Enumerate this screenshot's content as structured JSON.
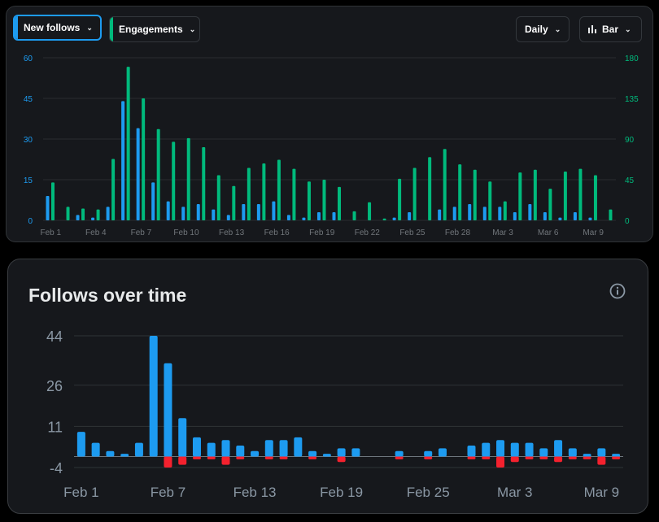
{
  "controls": {
    "new_follows_label": "New follows",
    "engagements_label": "Engagements",
    "interval_label": "Daily",
    "chart_type_label": "Bar",
    "chevron_icon": "chevron-down-icon",
    "bar_chart_icon": "bar-chart-icon"
  },
  "colors": {
    "follows": "#1d9bf0",
    "engagements": "#00ba7c",
    "unfollows": "#f4212e",
    "axis_left": "#1d9bf0",
    "axis_right": "#00ba7c",
    "tick_text": "#71767b"
  },
  "bottom_title": "Follows over time",
  "info_icon": "info-icon",
  "chart_data": [
    {
      "type": "bar",
      "title": "",
      "categories": [
        "Feb 1",
        "Feb 2",
        "Feb 3",
        "Feb 4",
        "Feb 5",
        "Feb 6",
        "Feb 7",
        "Feb 8",
        "Feb 9",
        "Feb 10",
        "Feb 11",
        "Feb 12",
        "Feb 13",
        "Feb 14",
        "Feb 15",
        "Feb 16",
        "Feb 17",
        "Feb 18",
        "Feb 19",
        "Feb 20",
        "Feb 21",
        "Feb 22",
        "Feb 23",
        "Feb 24",
        "Feb 25",
        "Feb 26",
        "Feb 27",
        "Feb 28",
        "Mar 1",
        "Mar 2",
        "Mar 3",
        "Mar 4",
        "Mar 5",
        "Mar 6",
        "Mar 7",
        "Mar 8",
        "Mar 9",
        "Mar 10"
      ],
      "x_tick_labels": [
        "Feb 1",
        "Feb 4",
        "Feb 7",
        "Feb 10",
        "Feb 13",
        "Feb 16",
        "Feb 19",
        "Feb 22",
        "Feb 25",
        "Feb 28",
        "Mar 3",
        "Mar 6",
        "Mar 9"
      ],
      "series": [
        {
          "name": "New follows",
          "axis": "left",
          "values": [
            9,
            0,
            2,
            1,
            5,
            44,
            34,
            14,
            7,
            5,
            6,
            4,
            2,
            6,
            6,
            7,
            2,
            1,
            3,
            3,
            0,
            0,
            0,
            1,
            3,
            0,
            4,
            5,
            6,
            5,
            5,
            3,
            6,
            3,
            1,
            3,
            1,
            0
          ]
        },
        {
          "name": "Engagements",
          "axis": "right",
          "values": [
            42,
            15,
            13,
            12,
            68,
            170,
            135,
            101,
            87,
            91,
            81,
            50,
            38,
            58,
            63,
            67,
            57,
            43,
            45,
            37,
            10,
            20,
            2,
            46,
            58,
            70,
            79,
            62,
            56,
            43,
            21,
            53,
            56,
            35,
            54,
            57,
            50,
            12
          ]
        }
      ],
      "y_left": {
        "ticks": [
          0,
          15,
          30,
          45,
          60
        ],
        "range": [
          0,
          60
        ]
      },
      "y_right": {
        "ticks": [
          0,
          45,
          90,
          135,
          180
        ],
        "range": [
          0,
          180
        ]
      },
      "grid": true
    },
    {
      "type": "bar",
      "title": "Follows over time",
      "categories": [
        "Feb 1",
        "Feb 2",
        "Feb 3",
        "Feb 4",
        "Feb 5",
        "Feb 6",
        "Feb 7",
        "Feb 8",
        "Feb 9",
        "Feb 10",
        "Feb 11",
        "Feb 12",
        "Feb 13",
        "Feb 14",
        "Feb 15",
        "Feb 16",
        "Feb 17",
        "Feb 18",
        "Feb 19",
        "Feb 20",
        "Feb 21",
        "Feb 22",
        "Feb 23",
        "Feb 24",
        "Feb 25",
        "Feb 26",
        "Feb 27",
        "Feb 28",
        "Mar 1",
        "Mar 2",
        "Mar 3",
        "Mar 4",
        "Mar 5",
        "Mar 6",
        "Mar 7",
        "Mar 8",
        "Mar 9",
        "Mar 10"
      ],
      "x_tick_labels": [
        "Feb 1",
        "Feb 7",
        "Feb 13",
        "Feb 19",
        "Feb 25",
        "Mar 3",
        "Mar 9"
      ],
      "series": [
        {
          "name": "Follows",
          "values": [
            9,
            5,
            2,
            1,
            5,
            44,
            34,
            14,
            7,
            5,
            6,
            4,
            2,
            6,
            6,
            7,
            2,
            1,
            3,
            3,
            0,
            0,
            2,
            0,
            2,
            3,
            0,
            4,
            5,
            6,
            5,
            5,
            3,
            6,
            3,
            1,
            3,
            1
          ]
        },
        {
          "name": "Unfollows",
          "values": [
            0,
            0,
            0,
            0,
            0,
            0,
            -4,
            -3,
            -1,
            -1,
            -3,
            -1,
            0,
            -1,
            -1,
            0,
            -1,
            0,
            -2,
            0,
            0,
            0,
            -1,
            0,
            -1,
            0,
            0,
            -1,
            -1,
            -4,
            -2,
            -1,
            -1,
            -2,
            -1,
            -1,
            -3,
            -1
          ]
        }
      ],
      "y_ticks": [
        -4,
        11,
        26,
        44
      ],
      "y_range": [
        -4,
        44
      ],
      "grid": true
    }
  ]
}
